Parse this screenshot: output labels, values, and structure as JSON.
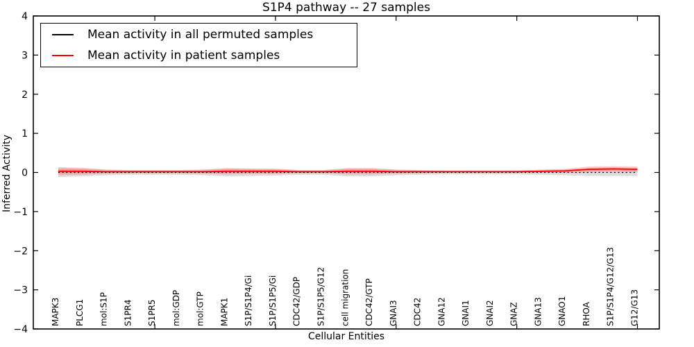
{
  "chart_data": {
    "type": "line",
    "title": "S1P4 pathway -- 27 samples",
    "xlabel": "Cellular Entities",
    "ylabel": "Inferred Activity",
    "ylim": [
      -4,
      4
    ],
    "yticks": [
      -4,
      -3,
      -2,
      -1,
      0,
      1,
      2,
      3,
      4
    ],
    "grid": false,
    "legend_position": "upper left",
    "categories": [
      "MAPK3",
      "PLCG1",
      "mol:S1P",
      "S1PR4",
      "S1PR5",
      "mol:GDP",
      "mol:GTP",
      "MAPK1",
      "S1P/S1P4/Gi",
      "S1P/S1P5/Gi",
      "CDC42/GDP",
      "S1P/S1P5/G12",
      "cell migration",
      "CDC42/GTP",
      "GNAI3",
      "CDC42",
      "GNA12",
      "GNAI1",
      "GNAI2",
      "GNAZ",
      "GNA13",
      "GNAO1",
      "RHOA",
      "S1P/S1P4/G12/G13",
      "G12/G13"
    ],
    "series": [
      {
        "name": "Mean activity in all permuted samples",
        "color": "#000000",
        "line_style": "dotted",
        "values": [
          0,
          0,
          0,
          0,
          0,
          0,
          0,
          0,
          0,
          0,
          0,
          0,
          0,
          0,
          0,
          0,
          0,
          0,
          0,
          0,
          0,
          0,
          0,
          0,
          0
        ],
        "band_halfwidth": [
          0.12,
          0.1,
          0.07,
          0.06,
          0.06,
          0.06,
          0.07,
          0.1,
          0.09,
          0.08,
          0.06,
          0.06,
          0.1,
          0.1,
          0.07,
          0.06,
          0.05,
          0.05,
          0.05,
          0.05,
          0.06,
          0.07,
          0.09,
          0.09,
          0.09
        ],
        "band_color": "#999999"
      },
      {
        "name": "Mean activity in patient samples",
        "color": "#ff0000",
        "line_style": "solid",
        "values": [
          0.03,
          0.03,
          0.02,
          0.02,
          0.02,
          0.02,
          0.02,
          0.03,
          0.03,
          0.03,
          0.02,
          0.02,
          0.03,
          0.03,
          0.02,
          0.02,
          0.02,
          0.02,
          0.02,
          0.02,
          0.03,
          0.04,
          0.08,
          0.09,
          0.08
        ],
        "band_halfwidth": [
          0.1,
          0.09,
          0.05,
          0.04,
          0.04,
          0.04,
          0.05,
          0.08,
          0.07,
          0.07,
          0.04,
          0.04,
          0.08,
          0.08,
          0.05,
          0.04,
          0.03,
          0.03,
          0.03,
          0.03,
          0.04,
          0.05,
          0.07,
          0.07,
          0.07
        ],
        "band_color": "#ff7777"
      }
    ]
  }
}
